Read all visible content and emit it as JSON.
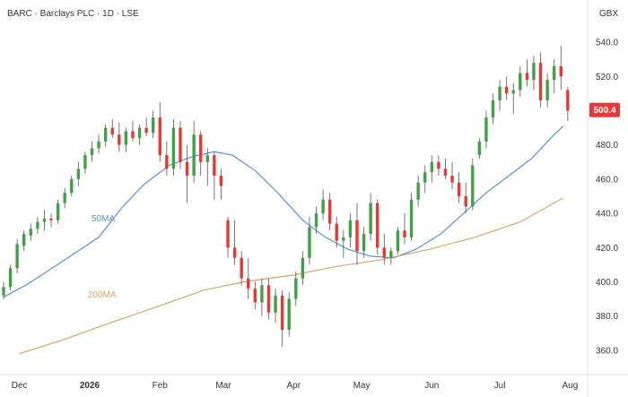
{
  "chart_data": {
    "type": "candlestick",
    "title": "BARC · Barclays PLC · 1D · LSE",
    "currency": "GBX",
    "last_price_label": "500.4",
    "colors": {
      "up": "#43a047",
      "down": "#e53935",
      "wick": "#555555",
      "ma50": "#5b8fd6",
      "ma200": "#d4a56a",
      "price_tag": "#e53935"
    },
    "ylim": [
      350,
      550
    ],
    "y_ticks": [
      "540.0",
      "520.0",
      "500.0",
      "480.0",
      "460.0",
      "440.0",
      "420.0",
      "400.0",
      "380.0",
      "360.0"
    ],
    "x_ticks": [
      {
        "label": "Dec",
        "date": "2025-12-01",
        "bold": false
      },
      {
        "label": "2026",
        "date": "2026-01-01",
        "bold": true
      },
      {
        "label": "Feb",
        "date": "2026-02-01",
        "bold": false
      },
      {
        "label": "Mar",
        "date": "2026-03-01",
        "bold": false
      },
      {
        "label": "Apr",
        "date": "2026-04-01",
        "bold": false
      },
      {
        "label": "May",
        "date": "2026-05-01",
        "bold": false
      },
      {
        "label": "Jun",
        "date": "2026-06-01",
        "bold": false
      },
      {
        "label": "Jul",
        "date": "2026-07-01",
        "bold": false
      },
      {
        "label": "Aug",
        "date": "2026-08-01",
        "bold": false
      }
    ],
    "xlim": [
      "2025-11-24",
      "2026-08-06"
    ],
    "series": [
      {
        "name": "50MA",
        "points": [
          [
            "2025-11-24",
            391
          ],
          [
            "2025-12-05",
            399
          ],
          [
            "2025-12-20",
            412
          ],
          [
            "2026-01-05",
            426
          ],
          [
            "2026-01-15",
            443
          ],
          [
            "2026-01-25",
            457
          ],
          [
            "2026-02-05",
            468
          ],
          [
            "2026-02-15",
            473
          ],
          [
            "2026-02-25",
            476
          ],
          [
            "2026-03-05",
            474
          ],
          [
            "2026-03-15",
            465
          ],
          [
            "2026-03-25",
            452
          ],
          [
            "2026-04-05",
            436
          ],
          [
            "2026-04-15",
            426
          ],
          [
            "2026-04-25",
            419
          ],
          [
            "2026-05-05",
            415
          ],
          [
            "2026-05-15",
            414
          ],
          [
            "2026-05-25",
            419
          ],
          [
            "2026-06-05",
            428
          ],
          [
            "2026-06-15",
            440
          ],
          [
            "2026-06-25",
            452
          ],
          [
            "2026-07-05",
            462
          ],
          [
            "2026-07-15",
            472
          ],
          [
            "2026-07-25",
            486
          ],
          [
            "2026-07-29",
            491
          ]
        ]
      },
      {
        "name": "200MA",
        "points": [
          [
            "2025-12-01",
            358
          ],
          [
            "2025-12-20",
            366
          ],
          [
            "2026-01-10",
            376
          ],
          [
            "2026-02-01",
            386
          ],
          [
            "2026-02-20",
            395
          ],
          [
            "2026-03-10",
            400
          ],
          [
            "2026-04-01",
            404
          ],
          [
            "2026-04-20",
            409
          ],
          [
            "2026-05-10",
            413
          ],
          [
            "2026-05-31",
            419
          ],
          [
            "2026-06-20",
            426
          ],
          [
            "2026-07-10",
            435
          ],
          [
            "2026-07-29",
            449
          ]
        ]
      }
    ],
    "candles": [
      [
        "2025-11-24",
        392,
        400,
        390,
        397
      ],
      [
        "2025-11-27",
        397,
        410,
        395,
        408
      ],
      [
        "2025-11-30",
        408,
        425,
        405,
        422
      ],
      [
        "2025-12-03",
        421,
        430,
        418,
        428
      ],
      [
        "2025-12-06",
        427,
        434,
        424,
        431
      ],
      [
        "2025-12-09",
        431,
        438,
        428,
        435
      ],
      [
        "2025-12-12",
        435,
        442,
        430,
        437
      ],
      [
        "2025-12-15",
        437,
        440,
        432,
        436
      ],
      [
        "2025-12-18",
        436,
        448,
        434,
        446
      ],
      [
        "2025-12-21",
        446,
        455,
        443,
        452
      ],
      [
        "2025-12-24",
        452,
        462,
        450,
        460
      ],
      [
        "2025-12-27",
        460,
        470,
        456,
        466
      ],
      [
        "2025-12-30",
        466,
        476,
        463,
        474
      ],
      [
        "2026-01-02",
        474,
        482,
        470,
        478
      ],
      [
        "2026-01-05",
        478,
        486,
        475,
        482
      ],
      [
        "2026-01-08",
        482,
        492,
        479,
        490
      ],
      [
        "2026-01-11",
        490,
        495,
        484,
        486
      ],
      [
        "2026-01-14",
        486,
        493,
        476,
        480
      ],
      [
        "2026-01-17",
        480,
        490,
        476,
        488
      ],
      [
        "2026-01-20",
        488,
        494,
        482,
        484
      ],
      [
        "2026-01-23",
        484,
        492,
        480,
        490
      ],
      [
        "2026-01-26",
        490,
        496,
        485,
        487
      ],
      [
        "2026-01-29",
        487,
        500,
        484,
        496
      ],
      [
        "2026-02-01",
        496,
        505,
        470,
        474
      ],
      [
        "2026-02-04",
        474,
        482,
        462,
        466
      ],
      [
        "2026-02-07",
        466,
        495,
        462,
        490
      ],
      [
        "2026-02-10",
        490,
        494,
        466,
        470
      ],
      [
        "2026-02-13",
        470,
        480,
        446,
        462
      ],
      [
        "2026-02-16",
        462,
        494,
        458,
        486
      ],
      [
        "2026-02-19",
        486,
        488,
        462,
        470
      ],
      [
        "2026-02-22",
        470,
        478,
        456,
        474
      ],
      [
        "2026-02-25",
        474,
        476,
        448,
        462
      ],
      [
        "2026-02-28",
        462,
        466,
        448,
        456
      ],
      [
        "2026-03-03",
        436,
        438,
        414,
        420
      ],
      [
        "2026-03-06",
        420,
        436,
        410,
        414
      ],
      [
        "2026-03-09",
        414,
        418,
        398,
        402
      ],
      [
        "2026-03-12",
        402,
        414,
        390,
        396
      ],
      [
        "2026-03-15",
        396,
        400,
        384,
        388
      ],
      [
        "2026-03-18",
        388,
        402,
        380,
        398
      ],
      [
        "2026-03-21",
        398,
        402,
        378,
        382
      ],
      [
        "2026-03-24",
        382,
        396,
        376,
        392
      ],
      [
        "2026-03-27",
        392,
        395,
        362,
        372
      ],
      [
        "2026-03-30",
        372,
        394,
        368,
        390
      ],
      [
        "2026-04-02",
        390,
        406,
        386,
        402
      ],
      [
        "2026-04-05",
        402,
        418,
        398,
        414
      ],
      [
        "2026-04-08",
        414,
        438,
        410,
        432
      ],
      [
        "2026-04-11",
        432,
        444,
        428,
        440
      ],
      [
        "2026-04-14",
        440,
        454,
        436,
        448
      ],
      [
        "2026-04-17",
        448,
        452,
        430,
        434
      ],
      [
        "2026-04-20",
        434,
        438,
        420,
        424
      ],
      [
        "2026-04-23",
        424,
        430,
        414,
        426
      ],
      [
        "2026-04-26",
        426,
        440,
        420,
        436
      ],
      [
        "2026-04-29",
        436,
        446,
        410,
        418
      ],
      [
        "2026-05-02",
        418,
        432,
        414,
        428
      ],
      [
        "2026-05-05",
        428,
        452,
        424,
        446
      ],
      [
        "2026-05-08",
        446,
        448,
        416,
        420
      ],
      [
        "2026-05-11",
        420,
        428,
        410,
        414
      ],
      [
        "2026-05-14",
        414,
        420,
        410,
        418
      ],
      [
        "2026-05-17",
        418,
        432,
        416,
        430
      ],
      [
        "2026-05-20",
        430,
        440,
        422,
        426
      ],
      [
        "2026-05-23",
        426,
        452,
        424,
        448
      ],
      [
        "2026-05-26",
        448,
        462,
        444,
        458
      ],
      [
        "2026-05-29",
        458,
        468,
        452,
        464
      ],
      [
        "2026-06-01",
        464,
        474,
        458,
        470
      ],
      [
        "2026-06-04",
        470,
        474,
        462,
        466
      ],
      [
        "2026-06-07",
        466,
        472,
        460,
        462
      ],
      [
        "2026-06-10",
        462,
        470,
        454,
        458
      ],
      [
        "2026-06-13",
        458,
        464,
        446,
        450
      ],
      [
        "2026-06-16",
        450,
        458,
        440,
        444
      ],
      [
        "2026-06-19",
        444,
        472,
        442,
        468
      ],
      [
        "2026-06-22",
        474,
        484,
        472,
        482
      ],
      [
        "2026-06-25",
        482,
        500,
        478,
        496
      ],
      [
        "2026-06-28",
        496,
        510,
        492,
        506
      ],
      [
        "2026-07-01",
        506,
        518,
        500,
        514
      ],
      [
        "2026-07-04",
        514,
        520,
        506,
        510
      ],
      [
        "2026-07-07",
        510,
        516,
        498,
        512
      ],
      [
        "2026-07-10",
        512,
        526,
        508,
        522
      ],
      [
        "2026-07-13",
        522,
        530,
        514,
        518
      ],
      [
        "2026-07-16",
        518,
        532,
        512,
        528
      ],
      [
        "2026-07-19",
        528,
        534,
        502,
        506
      ],
      [
        "2026-07-22",
        506,
        522,
        502,
        518
      ],
      [
        "2026-07-25",
        518,
        530,
        510,
        526
      ],
      [
        "2026-07-28",
        526,
        538,
        512,
        520
      ],
      [
        "2026-07-31",
        512,
        514,
        494,
        500
      ]
    ]
  }
}
